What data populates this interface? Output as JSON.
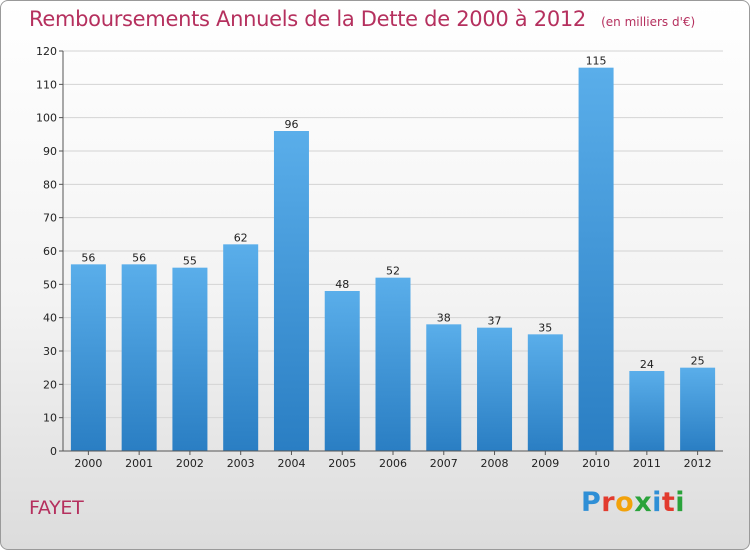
{
  "header": {
    "title": "Remboursements Annuels de la Dette de 2000 à 2012",
    "unit": "(en milliers d'€)"
  },
  "footer": {
    "town": "FAYET",
    "logo": {
      "text": "Proxiti",
      "letters": [
        {
          "char": "P",
          "color": "#2f8fd6"
        },
        {
          "char": "r",
          "color": "#e23b2e"
        },
        {
          "char": "o",
          "color": "#f2a20a"
        },
        {
          "char": "x",
          "color": "#2aa33b"
        },
        {
          "char": "i",
          "color": "#2f8fd6"
        },
        {
          "char": "t",
          "color": "#e23b2e"
        },
        {
          "char": "i",
          "color": "#2aa33b"
        }
      ]
    }
  },
  "chart_data": {
    "type": "bar",
    "title": "Remboursements Annuels de la Dette de 2000 à 2012",
    "xlabel": "",
    "ylabel": "",
    "categories": [
      "2000",
      "2001",
      "2002",
      "2003",
      "2004",
      "2005",
      "2006",
      "2007",
      "2008",
      "2009",
      "2010",
      "2011",
      "2012"
    ],
    "values": [
      56,
      56,
      55,
      62,
      96,
      48,
      52,
      38,
      37,
      35,
      115,
      24,
      25
    ],
    "ylim": [
      0,
      120
    ],
    "yticks": [
      0,
      10,
      20,
      30,
      40,
      50,
      60,
      70,
      80,
      90,
      100,
      110,
      120
    ],
    "grid": true,
    "colors": {
      "bar_light": "#5aaeea",
      "bar_dark": "#2a7ec3",
      "grid": "#d4d4d4",
      "axis": "#555555"
    }
  }
}
